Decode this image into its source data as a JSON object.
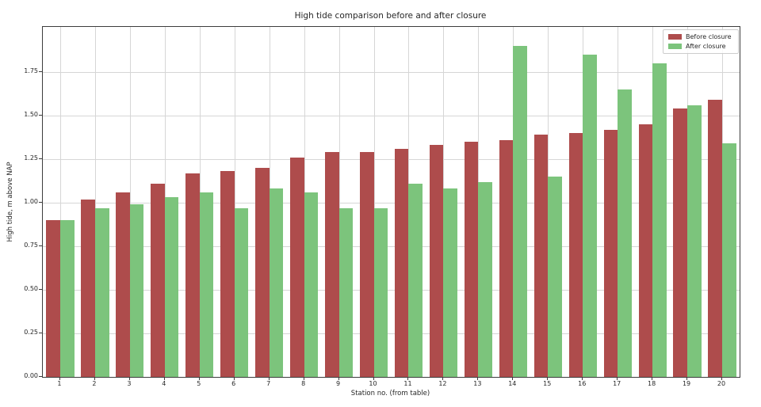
{
  "figure": {
    "background_color": "#ffffff",
    "text_color": "#262626",
    "grid_color": "#d6d6d6",
    "spine_color": "#3c3c3c"
  },
  "chart_data": {
    "type": "bar",
    "title": "High tide comparison before and after closure",
    "xlabel": "Station no. (from table)",
    "ylabel": "High tide, m above NAP",
    "categories": [
      "1",
      "2",
      "3",
      "4",
      "5",
      "6",
      "7",
      "8",
      "9",
      "10",
      "11",
      "12",
      "13",
      "14",
      "15",
      "16",
      "17",
      "18",
      "19",
      "20"
    ],
    "series": [
      {
        "name": "Before closure",
        "color": "#AE4C4C",
        "values": [
          0.9,
          1.02,
          1.06,
          1.11,
          1.17,
          1.18,
          1.2,
          1.26,
          1.29,
          1.29,
          1.31,
          1.33,
          1.35,
          1.36,
          1.39,
          1.4,
          1.42,
          1.45,
          1.54,
          1.59
        ]
      },
      {
        "name": "After closure",
        "color": "#7CC47C",
        "values": [
          0.9,
          0.97,
          0.99,
          1.03,
          1.06,
          0.97,
          1.08,
          1.06,
          0.97,
          0.97,
          1.11,
          1.08,
          1.12,
          1.9,
          1.15,
          1.85,
          1.65,
          1.8,
          1.56,
          1.34
        ]
      }
    ],
    "ylim": [
      0,
      2.0
    ],
    "yticks": [
      "0.00",
      "0.25",
      "0.50",
      "0.75",
      "1.00",
      "1.25",
      "1.50",
      "1.75"
    ],
    "grid": true,
    "legend_position": "upper right"
  }
}
